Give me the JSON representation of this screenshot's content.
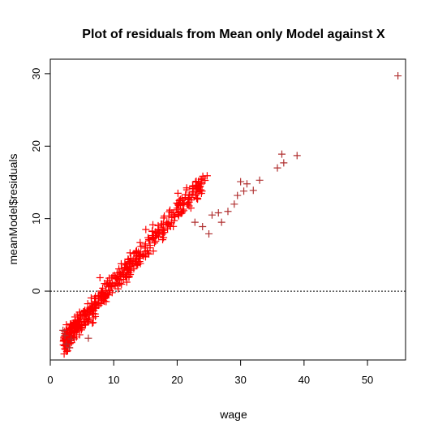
{
  "chart_data": {
    "type": "scatter",
    "title": "Plot of residuals from Mean only Model against X",
    "xlabel": "wage",
    "ylabel": "meanModel$residuals",
    "xlim": [
      0,
      56
    ],
    "ylim": [
      -9.5,
      32
    ],
    "xticks": [
      0,
      10,
      20,
      30,
      40,
      50
    ],
    "yticks": [
      0,
      10,
      20,
      30
    ],
    "reference_line": {
      "y": 0,
      "style": "dotted"
    },
    "marker": "plus",
    "colors": {
      "primary": "#ff0000",
      "outliers": "#b03030",
      "axes": "#000000"
    },
    "grid": false,
    "point_count": 532,
    "intercept": -9.02,
    "points_highlight": [
      {
        "x": 54.8,
        "y": 29.7
      },
      {
        "x": 38.9,
        "y": 18.7
      },
      {
        "x": 36.5,
        "y": 18.9
      },
      {
        "x": 36.8,
        "y": 17.7
      },
      {
        "x": 35.8,
        "y": 17.0
      },
      {
        "x": 33.0,
        "y": 15.3
      },
      {
        "x": 30.0,
        "y": 15.1
      },
      {
        "x": 31.0,
        "y": 14.8
      },
      {
        "x": 30.5,
        "y": 13.8
      },
      {
        "x": 29.5,
        "y": 13.2
      },
      {
        "x": 32.0,
        "y": 13.9
      },
      {
        "x": 29.0,
        "y": 12.0
      },
      {
        "x": 28.0,
        "y": 11.0
      },
      {
        "x": 25.5,
        "y": 10.5
      },
      {
        "x": 26.5,
        "y": 10.8
      },
      {
        "x": 27.0,
        "y": 9.5
      },
      {
        "x": 24.0,
        "y": 8.9
      },
      {
        "x": 22.8,
        "y": 9.5
      },
      {
        "x": 25.0,
        "y": 7.9
      },
      {
        "x": 2.0,
        "y": -5.4
      },
      {
        "x": 2.5,
        "y": -7.3
      },
      {
        "x": 3.0,
        "y": -7.8
      },
      {
        "x": 3.3,
        "y": -6.6
      },
      {
        "x": 6.0,
        "y": -6.5
      },
      {
        "x": 2.3,
        "y": -6.1
      }
    ]
  }
}
